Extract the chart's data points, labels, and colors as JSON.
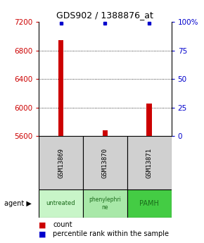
{
  "title": "GDS902 / 1388876_at",
  "samples": [
    "GSM13869",
    "GSM13870",
    "GSM13871"
  ],
  "agents": [
    "untreated",
    "phenylephrine",
    "PAMH"
  ],
  "agent_colors": [
    "#c8f5c8",
    "#a8e8a8",
    "#44cc44"
  ],
  "count_values": [
    6940,
    5680,
    6060
  ],
  "percentile_values": [
    99,
    99,
    99
  ],
  "ylim_left": [
    5600,
    7200
  ],
  "yticks_left": [
    5600,
    6000,
    6400,
    6800,
    7200
  ],
  "ylim_right": [
    0,
    100
  ],
  "yticks_right": [
    0,
    25,
    50,
    75,
    100
  ],
  "bar_color": "#cc0000",
  "dot_color": "#0000cc",
  "bar_width": 0.12,
  "background_color": "#ffffff"
}
